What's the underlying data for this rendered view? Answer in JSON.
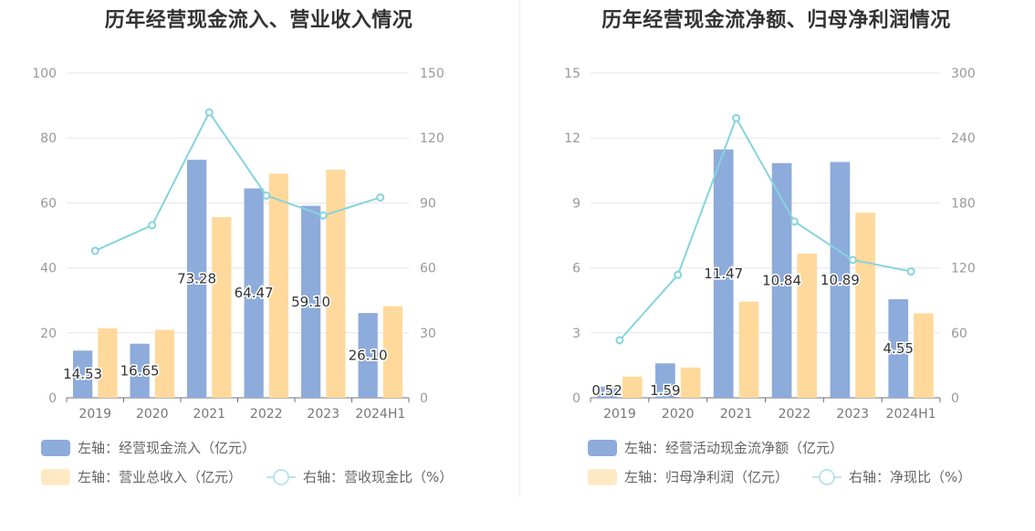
{
  "chart_data": [
    {
      "type": "bar",
      "title": "历年经营现金流入、营业收入情况",
      "categories": [
        "2019",
        "2020",
        "2021",
        "2022",
        "2023",
        "2024H1"
      ],
      "y_left": {
        "ticks": [
          "0",
          "20",
          "40",
          "60",
          "80",
          "100"
        ],
        "ylim": [
          0,
          100
        ]
      },
      "y_right": {
        "ticks": [
          "0",
          "30",
          "60",
          "90",
          "120",
          "150"
        ],
        "ylim": [
          0,
          150
        ]
      },
      "grid": true,
      "legend_position": "bottom-left",
      "series": [
        {
          "name": "左轴：经营现金流入（亿元）",
          "type": "bar",
          "axis": "left",
          "color": "#8dabdb",
          "values": [
            14.53,
            16.65,
            73.28,
            64.47,
            59.1,
            26.1
          ],
          "labels": [
            "14.53",
            "16.65",
            "73.28",
            "64.47",
            "59.10",
            "26.10"
          ]
        },
        {
          "name": "左轴：营业总收入（亿元）",
          "type": "bar",
          "axis": "left",
          "color": "#ffd99b",
          "values": [
            21.4,
            20.9,
            55.6,
            69.0,
            70.2,
            28.2
          ]
        },
        {
          "name": "右轴：营收现金比（%）",
          "type": "line",
          "axis": "right",
          "color": "#86d4dc",
          "values": [
            67.9,
            79.7,
            131.8,
            93.4,
            84.2,
            92.5
          ]
        }
      ]
    },
    {
      "type": "bar",
      "title": "历年经营现金流净额、归母净利润情况",
      "categories": [
        "2019",
        "2020",
        "2021",
        "2022",
        "2023",
        "2024H1"
      ],
      "y_left": {
        "ticks": [
          "0",
          "3",
          "6",
          "9",
          "12",
          "15"
        ],
        "ylim": [
          0,
          15
        ]
      },
      "y_right": {
        "ticks": [
          "0",
          "60",
          "120",
          "180",
          "240",
          "300"
        ],
        "ylim": [
          0,
          300
        ]
      },
      "grid": true,
      "legend_position": "bottom-left",
      "series": [
        {
          "name": "左轴：经营活动现金流净额（亿元）",
          "type": "bar",
          "axis": "left",
          "color": "#8dabdb",
          "values": [
            0.52,
            1.59,
            11.47,
            10.84,
            10.89,
            4.55
          ],
          "labels": [
            "0.52",
            "1.59",
            "11.47",
            "10.84",
            "10.89",
            "4.55"
          ]
        },
        {
          "name": "左轴：归母净利润（亿元）",
          "type": "bar",
          "axis": "left",
          "color": "#ffd99b",
          "values": [
            0.98,
            1.4,
            4.44,
            6.66,
            8.55,
            3.9
          ]
        },
        {
          "name": "右轴：净现比（%）",
          "type": "line",
          "axis": "right",
          "color": "#86d4dc",
          "values": [
            53.1,
            113.6,
            258.3,
            162.8,
            127.4,
            116.7
          ]
        }
      ]
    }
  ]
}
